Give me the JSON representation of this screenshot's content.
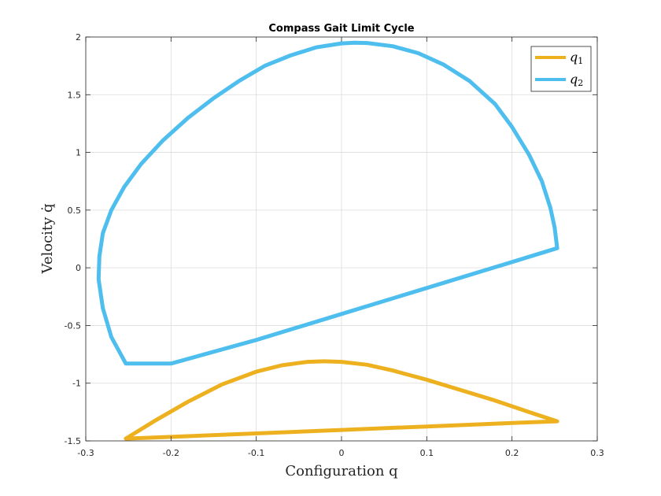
{
  "chart_data": {
    "type": "line",
    "title": "Compass Gait Limit Cycle",
    "xlabel": "Configuration q",
    "ylabel": "Velocity q̇",
    "xlim": [
      -0.3,
      0.3
    ],
    "ylim": [
      -1.5,
      2
    ],
    "xticks": [
      "-0.3",
      "-0.2",
      "-0.1",
      "0",
      "0.1",
      "0.2",
      "0.3"
    ],
    "yticks": [
      "-1.5",
      "-1",
      "-0.5",
      "0",
      "0.5",
      "1",
      "1.5",
      "2"
    ],
    "xtick_values": [
      -0.3,
      -0.2,
      -0.1,
      0,
      0.1,
      0.2,
      0.3
    ],
    "ytick_values": [
      -1.5,
      -1,
      -0.5,
      0,
      0.5,
      1,
      1.5,
      2
    ],
    "grid": true,
    "legend_position": "top-right",
    "series": [
      {
        "name": "q1",
        "legend_base": "q",
        "legend_sub": "1",
        "color": "#EDB120",
        "x": [
          -0.253,
          -0.22,
          -0.18,
          -0.14,
          -0.1,
          -0.07,
          -0.04,
          -0.02,
          0.0,
          0.03,
          0.06,
          0.1,
          0.14,
          0.18,
          0.22,
          0.253,
          0.2,
          0.1,
          0.0,
          -0.1,
          -0.2,
          -0.253
        ],
        "y": [
          -1.48,
          -1.33,
          -1.16,
          -1.01,
          -0.9,
          -0.845,
          -0.815,
          -0.81,
          -0.815,
          -0.84,
          -0.89,
          -0.97,
          -1.06,
          -1.15,
          -1.25,
          -1.33,
          -1.345,
          -1.375,
          -1.405,
          -1.435,
          -1.465,
          -1.48
        ]
      },
      {
        "name": "q2",
        "legend_base": "q",
        "legend_sub": "2",
        "color": "#4DBEEE",
        "x": [
          -0.253,
          -0.27,
          -0.28,
          -0.285,
          -0.284,
          -0.28,
          -0.27,
          -0.255,
          -0.235,
          -0.21,
          -0.18,
          -0.15,
          -0.12,
          -0.09,
          -0.06,
          -0.03,
          0.0,
          0.015,
          0.03,
          0.06,
          0.09,
          0.12,
          0.15,
          0.18,
          0.2,
          0.22,
          0.235,
          0.245,
          0.25,
          0.252,
          0.253,
          0.2,
          0.1,
          0.0,
          -0.1,
          -0.2,
          -0.253
        ],
        "y": [
          -0.83,
          -0.6,
          -0.35,
          -0.1,
          0.1,
          0.3,
          0.5,
          0.7,
          0.9,
          1.1,
          1.3,
          1.47,
          1.62,
          1.75,
          1.84,
          1.91,
          1.945,
          1.95,
          1.948,
          1.92,
          1.86,
          1.76,
          1.62,
          1.42,
          1.22,
          0.98,
          0.75,
          0.52,
          0.35,
          0.23,
          0.17,
          0.05,
          -0.175,
          -0.4,
          -0.625,
          -0.83,
          -0.83
        ]
      }
    ]
  }
}
